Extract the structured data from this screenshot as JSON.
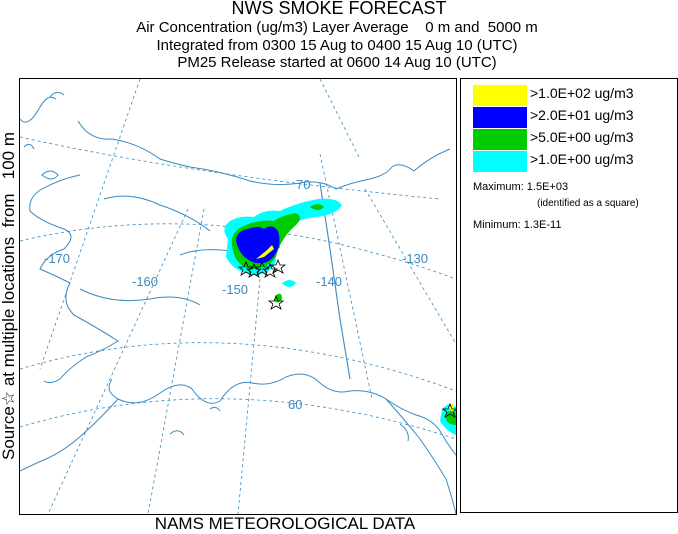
{
  "header": {
    "title": "NWS SMOKE FORECAST",
    "line2": "Air Concentration (ug/m3) Layer Average    0 m and  5000 m",
    "line3": "Integrated from 0300 15 Aug to 0400 15 Aug 10 (UTC)",
    "line4": "PM25 Release started at 0600 14 Aug 10 (UTC)"
  },
  "side_label": "Source☆ at multiple locations  from   100 m",
  "footer": "NAMS METEOROLOGICAL DATA",
  "map": {
    "graticule_labels": {
      "lon_m170": "-170",
      "lon_m160": "-160",
      "lon_m150": "-150",
      "lon_m140": "-140",
      "lon_m130": "-130",
      "lat_70": "70",
      "lat_60": "60"
    },
    "colors": {
      "coast": "#3a8ac0",
      "grid": "#3a8ac0",
      "level_yellow": "#ffff00",
      "level_blue": "#0000ff",
      "level_green": "#00cc00",
      "level_cyan": "#00ffff"
    }
  },
  "legend": {
    "entries": [
      {
        "label": ">1.0E+02 ug/m3",
        "color": "#ffff00"
      },
      {
        "label": ">2.0E+01 ug/m3",
        "color": "#0000ff"
      },
      {
        "label": ">5.0E+00 ug/m3",
        "color": "#00cc00"
      },
      {
        "label": ">1.0E+00 ug/m3",
        "color": "#00ffff"
      }
    ],
    "maximum": "Maximum: 1.5E+03",
    "maximum_note": "(identified as a square)",
    "minimum": "Minimum: 1.3E-11"
  }
}
